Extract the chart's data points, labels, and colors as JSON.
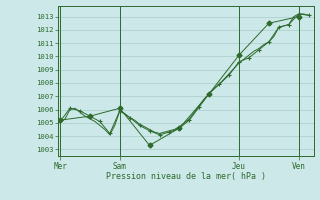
{
  "bg_color": "#cce8e8",
  "grid_color": "#aacccc",
  "line_color": "#2d6a2d",
  "text_color": "#2d6a2d",
  "xlabel": "Pression niveau de la mer( hPa )",
  "ylim": [
    1002.5,
    1013.8
  ],
  "yticks": [
    1003,
    1004,
    1005,
    1006,
    1007,
    1008,
    1009,
    1010,
    1011,
    1012,
    1013
  ],
  "xtick_labels": [
    "Mer",
    "Sam",
    "Jeu",
    "Ven"
  ],
  "xtick_positions": [
    0,
    12,
    36,
    48
  ],
  "xlim": [
    -0.5,
    51
  ],
  "series1_x": [
    0,
    1,
    2,
    3,
    4,
    5,
    6,
    7,
    8,
    9,
    10,
    11,
    12,
    13,
    14,
    15,
    16,
    17,
    18,
    19,
    20,
    21,
    22,
    23,
    24,
    25,
    26,
    27,
    28,
    29,
    30,
    31,
    32,
    33,
    34,
    35,
    36,
    37,
    38,
    39,
    40,
    41,
    42,
    43,
    44,
    45,
    46,
    47,
    48,
    49,
    50
  ],
  "series1_y": [
    1005.0,
    1005.3,
    1006.0,
    1006.1,
    1005.8,
    1005.5,
    1005.3,
    1005.1,
    1004.8,
    1004.5,
    1004.1,
    1004.8,
    1005.9,
    1005.7,
    1005.4,
    1005.2,
    1004.9,
    1004.7,
    1004.5,
    1004.3,
    1004.2,
    1004.3,
    1004.4,
    1004.5,
    1004.7,
    1005.0,
    1005.3,
    1005.8,
    1006.3,
    1006.8,
    1007.2,
    1007.6,
    1007.9,
    1008.3,
    1008.7,
    1009.1,
    1009.5,
    1009.8,
    1010.1,
    1010.4,
    1010.6,
    1010.9,
    1011.1,
    1011.5,
    1012.2,
    1012.3,
    1012.4,
    1013.0,
    1013.2,
    1013.2,
    1013.1
  ],
  "series2_x": [
    0,
    2,
    4,
    6,
    8,
    10,
    12,
    14,
    16,
    18,
    20,
    22,
    24,
    26,
    28,
    30,
    32,
    34,
    36,
    38,
    40,
    42,
    44,
    46,
    48,
    50
  ],
  "series2_y": [
    1005.1,
    1006.1,
    1005.9,
    1005.5,
    1005.1,
    1004.2,
    1005.9,
    1005.4,
    1004.8,
    1004.4,
    1004.1,
    1004.3,
    1004.6,
    1005.2,
    1006.2,
    1007.2,
    1007.9,
    1008.6,
    1009.6,
    1009.9,
    1010.5,
    1011.1,
    1012.2,
    1012.4,
    1013.2,
    1013.1
  ],
  "series3_x": [
    0,
    6,
    12,
    18,
    24,
    30,
    36,
    42,
    48
  ],
  "series3_y": [
    1005.2,
    1005.5,
    1006.1,
    1003.3,
    1004.6,
    1007.2,
    1010.1,
    1012.5,
    1013.0
  ]
}
